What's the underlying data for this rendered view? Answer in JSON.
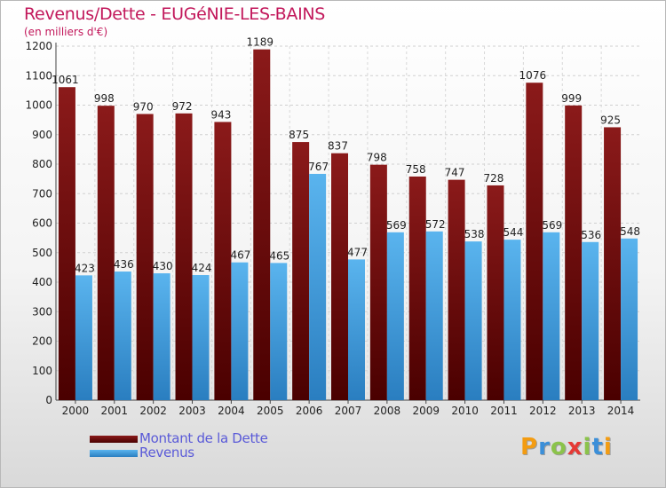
{
  "header": {
    "title": "Revenus/Dette - EUGéNIE-LES-BAINS",
    "subtitle": "(en milliers d'€)"
  },
  "legend": {
    "debt_label": "Montant de la Dette",
    "revenue_label": "Revenus"
  },
  "logo": {
    "text": "Proxiti",
    "letters": [
      "P",
      "r",
      "o",
      "x",
      "i",
      "t",
      "i"
    ],
    "letter_colors": [
      "#f39c12",
      "#3b8fd9",
      "#8bc34a",
      "#e53935",
      "#8bc34a",
      "#3b8fd9",
      "#f39c12"
    ]
  },
  "colors": {
    "debt": "#8b1a1a",
    "debt_dark": "#4a0000",
    "revenue": "#5ab4ee",
    "revenue_dark": "#2a7ec0"
  },
  "chart_data": {
    "type": "bar",
    "title": "Revenus/Dette - EUGéNIE-LES-BAINS",
    "subtitle": "(en milliers d'€)",
    "categories": [
      "2000",
      "2001",
      "2002",
      "2003",
      "2004",
      "2005",
      "2006",
      "2007",
      "2008",
      "2009",
      "2010",
      "2011",
      "2012",
      "2013",
      "2014"
    ],
    "series": [
      {
        "name": "Montant de la Dette",
        "values": [
          1061,
          998,
          970,
          972,
          943,
          1189,
          875,
          837,
          798,
          758,
          747,
          728,
          1076,
          999,
          925
        ]
      },
      {
        "name": "Revenus",
        "values": [
          423,
          436,
          430,
          424,
          467,
          465,
          767,
          477,
          569,
          572,
          538,
          544,
          569,
          536,
          548
        ]
      }
    ],
    "ylim": [
      0,
      1200
    ],
    "yticks": [
      0,
      100,
      200,
      300,
      400,
      500,
      600,
      700,
      800,
      900,
      1000,
      1100,
      1200
    ],
    "grid": true,
    "legend_position": "bottom-left"
  }
}
